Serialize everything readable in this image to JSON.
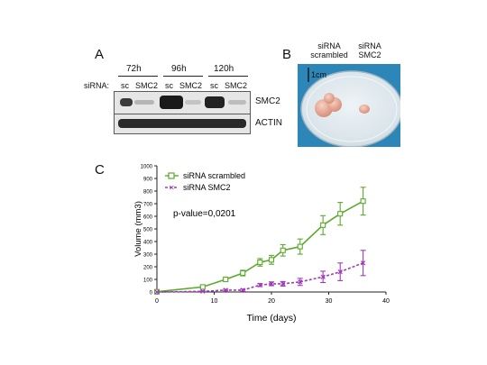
{
  "panel_a": {
    "letter": "A",
    "sirna_label": "siRNA:",
    "timepoints": [
      "72h",
      "96h",
      "120h"
    ],
    "lane_labels": [
      "sc",
      "SMC2",
      "sc",
      "SMC2",
      "sc",
      "SMC2"
    ],
    "blot_labels": [
      "SMC2",
      "ACTIN"
    ]
  },
  "panel_b": {
    "letter": "B",
    "col1": [
      "siRNA",
      "scrambled"
    ],
    "col2": [
      "siRNA",
      "SMC2"
    ],
    "scale": "1cm"
  },
  "panel_c": {
    "letter": "C"
  },
  "chart_data": {
    "type": "line",
    "xlabel": "Time (days)",
    "ylabel": "Volume (mm3)",
    "xlim": [
      0,
      40
    ],
    "ylim": [
      0,
      1000
    ],
    "xticks": [
      0,
      10,
      20,
      30,
      40
    ],
    "yticks": [
      0,
      100,
      200,
      300,
      400,
      500,
      600,
      700,
      800,
      900,
      1000
    ],
    "annotation": "p-value=0,0201",
    "legend_position": "top-left",
    "grid": false,
    "series": [
      {
        "name": "siRNA scrambled",
        "color": "#5aaa2c",
        "dash": "solid",
        "marker": "square",
        "x": [
          0,
          8,
          12,
          15,
          18,
          20,
          22,
          25,
          29,
          32,
          36
        ],
        "y": [
          2,
          40,
          100,
          150,
          235,
          255,
          330,
          360,
          530,
          620,
          720
        ],
        "err": [
          0,
          8,
          12,
          22,
          30,
          35,
          45,
          60,
          75,
          90,
          110
        ]
      },
      {
        "name": "siRNA SMC2",
        "color": "#a03ab8",
        "dash": "dashed",
        "marker": "x",
        "x": [
          0,
          8,
          12,
          15,
          18,
          20,
          22,
          25,
          29,
          32,
          36
        ],
        "y": [
          0,
          5,
          15,
          15,
          55,
          65,
          65,
          80,
          120,
          160,
          230
        ],
        "err": [
          0,
          3,
          6,
          8,
          12,
          15,
          18,
          28,
          45,
          70,
          100
        ]
      }
    ]
  }
}
